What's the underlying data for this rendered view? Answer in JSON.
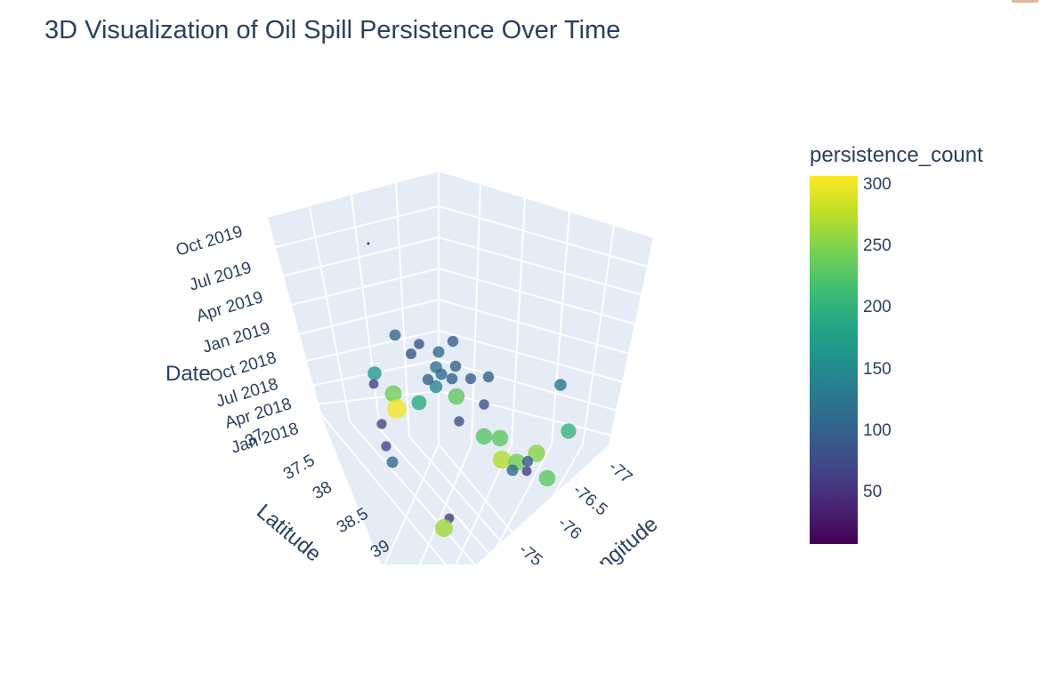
{
  "title": "3D Visualization of Oil Spill Persistence Over Time",
  "chart_data": {
    "type": "scatter3d",
    "title": "3D Visualization of Oil Spill Persistence Over Time",
    "axes": {
      "x": {
        "title": "Longitude",
        "ticks": [
          "-77",
          "-76.5",
          "-76",
          "-75"
        ]
      },
      "y": {
        "title": "Latitude",
        "ticks": [
          "37",
          "37.5",
          "38",
          "38.5",
          "39"
        ]
      },
      "z": {
        "title": "Date",
        "ticks": [
          "Jan 2018",
          "Apr 2018",
          "Jul 2018",
          "Oct 2018",
          "Jan 2019",
          "Apr 2019",
          "Jul 2019",
          "Oct 2019"
        ]
      }
    },
    "colorbar": {
      "title": "persistence_count",
      "colorscale": "Viridis",
      "range": [
        5,
        305
      ],
      "ticks": [
        "50",
        "100",
        "150",
        "200",
        "250",
        "300"
      ]
    },
    "points": [
      {
        "persistence_count": 5
      },
      {
        "persistence_count": 105
      },
      {
        "persistence_count": 80
      },
      {
        "persistence_count": 95
      },
      {
        "persistence_count": 110
      },
      {
        "persistence_count": 85
      },
      {
        "persistence_count": 120
      },
      {
        "persistence_count": 100
      },
      {
        "persistence_count": 110
      },
      {
        "persistence_count": 95
      },
      {
        "persistence_count": 100
      },
      {
        "persistence_count": 90
      },
      {
        "persistence_count": 165
      },
      {
        "persistence_count": 60
      },
      {
        "persistence_count": 140
      },
      {
        "persistence_count": 240
      },
      {
        "persistence_count": 300
      },
      {
        "persistence_count": 190
      },
      {
        "persistence_count": 230
      },
      {
        "persistence_count": 95
      },
      {
        "persistence_count": 80
      },
      {
        "persistence_count": 70
      },
      {
        "persistence_count": 75
      },
      {
        "persistence_count": 225
      },
      {
        "persistence_count": 230
      },
      {
        "persistence_count": 270
      },
      {
        "persistence_count": 240
      },
      {
        "persistence_count": 250
      },
      {
        "persistence_count": 90
      },
      {
        "persistence_count": 120
      },
      {
        "persistence_count": 60
      },
      {
        "persistence_count": 230
      },
      {
        "persistence_count": 110
      },
      {
        "persistence_count": 200
      },
      {
        "persistence_count": 70
      },
      {
        "persistence_count": 110
      },
      {
        "persistence_count": 60
      },
      {
        "persistence_count": 260
      }
    ]
  }
}
